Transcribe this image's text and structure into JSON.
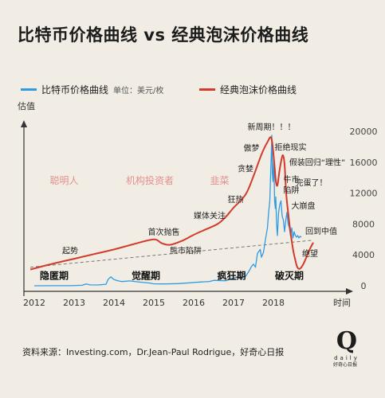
{
  "title": "比特币价格曲线 vs 经典泡沫价格曲线",
  "legend": {
    "btc_label": "比特币价格曲线",
    "btc_unit": "单位：美元/枚",
    "bubble_label": "经典泡沫价格曲线"
  },
  "colors": {
    "btc": "#2f9be0",
    "bubble": "#d23a2c",
    "trend": "#777777",
    "label_pink": "#e58f8f"
  },
  "source": "资料来源：Investing.com，Dr.Jean-Paul Rodrigue，好奇心日报",
  "logo": {
    "mark": "Q",
    "word": "daily",
    "sub": "好奇心日报"
  },
  "chart_data": {
    "type": "line",
    "ylabel": "估值",
    "xlabel": "时间",
    "x_ticks": [
      "2012",
      "2013",
      "2014",
      "2015",
      "2016",
      "2017",
      "2018"
    ],
    "y_right_ticks": [
      "0",
      "4000",
      "8000",
      "12000",
      "16000",
      "20000"
    ],
    "ylim": [
      0,
      20000
    ],
    "series": [
      {
        "name": "比特币价格曲线",
        "points": [
          [
            2012.0,
            5
          ],
          [
            2012.5,
            7
          ],
          [
            2012.9,
            13
          ],
          [
            2013.2,
            60
          ],
          [
            2013.3,
            230
          ],
          [
            2013.4,
            110
          ],
          [
            2013.6,
            100
          ],
          [
            2013.8,
            200
          ],
          [
            2013.85,
            800
          ],
          [
            2013.92,
            1150
          ],
          [
            2014.0,
            800
          ],
          [
            2014.1,
            650
          ],
          [
            2014.2,
            550
          ],
          [
            2014.4,
            630
          ],
          [
            2014.6,
            500
          ],
          [
            2014.9,
            350
          ],
          [
            2015.0,
            250
          ],
          [
            2015.3,
            240
          ],
          [
            2015.6,
            280
          ],
          [
            2015.9,
            380
          ],
          [
            2016.0,
            430
          ],
          [
            2016.4,
            560
          ],
          [
            2016.5,
            700
          ],
          [
            2016.8,
            650
          ],
          [
            2017.0,
            1000
          ],
          [
            2017.1,
            1150
          ],
          [
            2017.2,
            1000
          ],
          [
            2017.3,
            1200
          ],
          [
            2017.4,
            2000
          ],
          [
            2017.45,
            2500
          ],
          [
            2017.5,
            2800
          ],
          [
            2017.55,
            2400
          ],
          [
            2017.6,
            4200
          ],
          [
            2017.67,
            4700
          ],
          [
            2017.7,
            3700
          ],
          [
            2017.75,
            4300
          ],
          [
            2017.8,
            6000
          ],
          [
            2017.85,
            7500
          ],
          [
            2017.88,
            9500
          ],
          [
            2017.91,
            11000
          ],
          [
            2017.935,
            15000
          ],
          [
            2017.95,
            17500
          ],
          [
            2017.96,
            19500
          ],
          [
            2017.975,
            14500
          ],
          [
            2017.99,
            13500
          ],
          [
            2018.01,
            16500
          ],
          [
            2018.03,
            11000
          ],
          [
            2018.05,
            10000
          ],
          [
            2018.06,
            11500
          ],
          [
            2018.08,
            8000
          ],
          [
            2018.1,
            6500
          ],
          [
            2018.13,
            9500
          ],
          [
            2018.16,
            10500
          ],
          [
            2018.19,
            11000
          ],
          [
            2018.22,
            9000
          ],
          [
            2018.25,
            8500
          ],
          [
            2018.28,
            7000
          ],
          [
            2018.31,
            8500
          ],
          [
            2018.34,
            9500
          ],
          [
            2018.37,
            8000
          ],
          [
            2018.4,
            7500
          ],
          [
            2018.43,
            6500
          ],
          [
            2018.46,
            7500
          ],
          [
            2018.49,
            6200
          ],
          [
            2018.52,
            7000
          ],
          [
            2018.55,
            6500
          ],
          [
            2018.58,
            6300
          ],
          [
            2018.61,
            6500
          ],
          [
            2018.64,
            6200
          ],
          [
            2018.67,
            6400
          ],
          [
            2018.7,
            6300
          ]
        ]
      },
      {
        "name": "经典泡沫价格曲线",
        "points": [
          [
            2011.9,
            2100
          ],
          [
            2012.5,
            2900
          ],
          [
            2013.0,
            3500
          ],
          [
            2013.5,
            4100
          ],
          [
            2014.0,
            4700
          ],
          [
            2014.5,
            5400
          ],
          [
            2015.0,
            6000
          ],
          [
            2015.2,
            5500
          ],
          [
            2015.4,
            5300
          ],
          [
            2015.7,
            5800
          ],
          [
            2016.0,
            6600
          ],
          [
            2016.3,
            7300
          ],
          [
            2016.6,
            8000
          ],
          [
            2016.8,
            8900
          ],
          [
            2017.0,
            10100
          ],
          [
            2017.3,
            11800
          ],
          [
            2017.5,
            14200
          ],
          [
            2017.7,
            17000
          ],
          [
            2017.85,
            18600
          ],
          [
            2017.95,
            19100
          ],
          [
            2018.02,
            16000
          ],
          [
            2018.06,
            13600
          ],
          [
            2018.1,
            13000
          ],
          [
            2018.15,
            14800
          ],
          [
            2018.2,
            16300
          ],
          [
            2018.24,
            16900
          ],
          [
            2018.28,
            15700
          ],
          [
            2018.32,
            12000
          ],
          [
            2018.38,
            9000
          ],
          [
            2018.44,
            6500
          ],
          [
            2018.5,
            4500
          ],
          [
            2018.56,
            3100
          ],
          [
            2018.6,
            2400
          ],
          [
            2018.66,
            2200
          ],
          [
            2018.74,
            2700
          ],
          [
            2018.82,
            3600
          ],
          [
            2018.92,
            4800
          ],
          [
            2019.0,
            5600
          ]
        ]
      }
    ],
    "trend_line": {
      "from": [
        2011.9,
        2400
      ],
      "to": [
        2019.0,
        5900
      ]
    },
    "annotations": [
      {
        "text": "聪明人",
        "x": 2012.75,
        "y": 13200,
        "style": "zone"
      },
      {
        "text": "机构投资者",
        "x": 2014.9,
        "y": 13200,
        "style": "zone"
      },
      {
        "text": "韭菜",
        "x": 2016.65,
        "y": 13200,
        "style": "zone"
      },
      {
        "text": "起势",
        "x": 2012.9,
        "y": 4200
      },
      {
        "text": "首次抛售",
        "x": 2015.25,
        "y": 6600
      },
      {
        "text": "熊市陷阱",
        "x": 2015.8,
        "y": 4200
      },
      {
        "text": "媒体关注",
        "x": 2016.4,
        "y": 8700
      },
      {
        "text": "狂热",
        "x": 2017.05,
        "y": 10800
      },
      {
        "text": "贪婪",
        "x": 2017.3,
        "y": 14800
      },
      {
        "text": "傲梦",
        "x": 2017.45,
        "y": 17500
      },
      {
        "text": "新周期！！！",
        "x": 2017.95,
        "y": 20200
      },
      {
        "text": "拒绝现实",
        "x": 2018.43,
        "y": 17600
      },
      {
        "text": "假装回归“理性”",
        "x": 2019.1,
        "y": 15600
      },
      {
        "text": "牛市",
        "x": 2018.45,
        "y": 13400
      },
      {
        "text": "陷阱",
        "x": 2018.45,
        "y": 12000
      },
      {
        "text": "完蛋了！",
        "x": 2018.95,
        "y": 13000
      },
      {
        "text": "大崩盘",
        "x": 2018.75,
        "y": 10000
      },
      {
        "text": "回到中值",
        "x": 2019.2,
        "y": 6700
      },
      {
        "text": "绝望",
        "x": 2018.92,
        "y": 3800
      },
      {
        "text": "隐匿期",
        "x": 2012.5,
        "y": 900,
        "style": "phase"
      },
      {
        "text": "觉醒期",
        "x": 2014.8,
        "y": 900,
        "style": "phase"
      },
      {
        "text": "疯狂期",
        "x": 2016.95,
        "y": 900,
        "style": "phase"
      },
      {
        "text": "破灭期",
        "x": 2018.4,
        "y": 900,
        "style": "phase"
      }
    ]
  }
}
